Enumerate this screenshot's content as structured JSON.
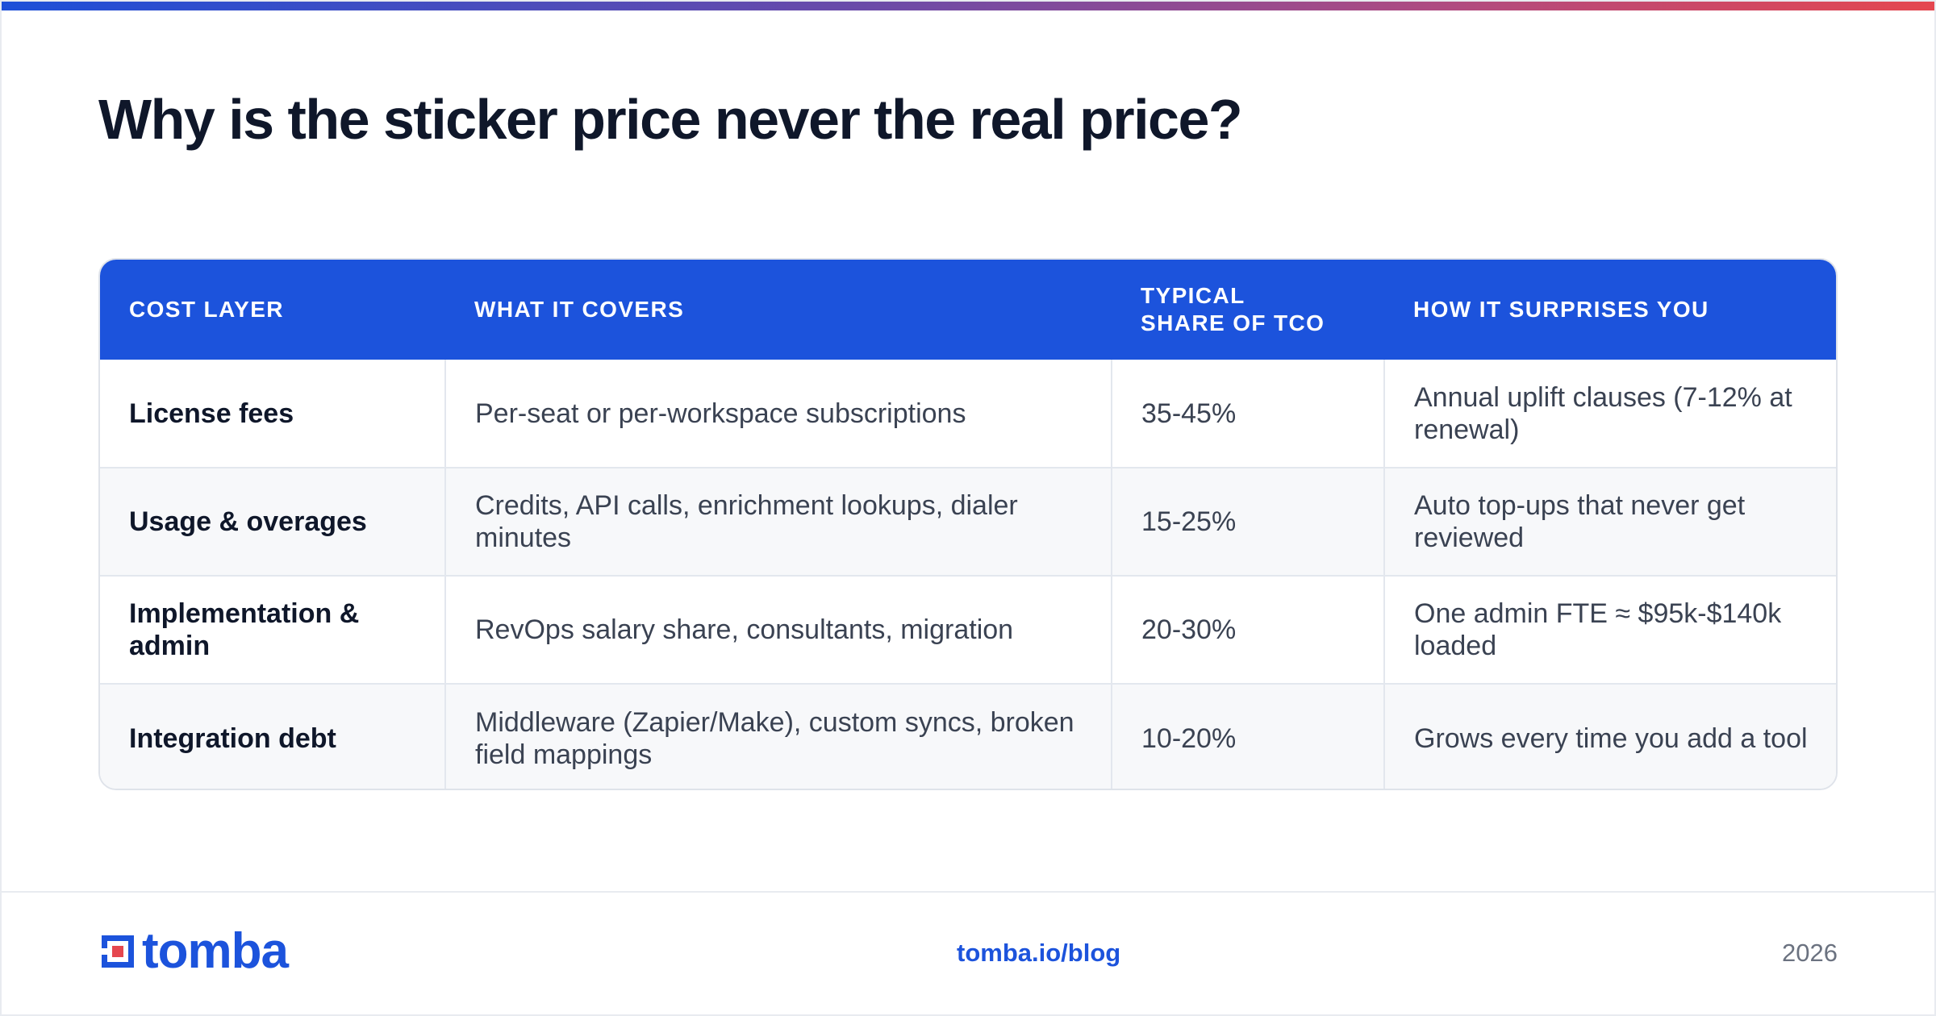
{
  "title": "Why is the sticker price never the real price?",
  "colors": {
    "accent": "#1c53dc",
    "accent_red": "#e5474f",
    "text_dark": "#0f172a",
    "text_body": "#3a4252",
    "muted": "#6b7280"
  },
  "table": {
    "headers": {
      "cost_layer": "COST LAYER",
      "what_it_covers": "WHAT IT COVERS",
      "typical_share": "TYPICAL SHARE OF TCO",
      "how_it_surprises": "HOW IT SURPRISES YOU"
    },
    "rows": [
      {
        "layer": "License fees",
        "covers": "Per-seat or per-workspace subscriptions",
        "share": "35-45%",
        "surprise": "Annual uplift clauses (7-12% at renewal)"
      },
      {
        "layer": "Usage & overages",
        "covers": "Credits, API calls, enrichment lookups, dialer minutes",
        "share": "15-25%",
        "surprise": "Auto top-ups that never get reviewed"
      },
      {
        "layer": "Implementation & admin",
        "covers": "RevOps salary share, consultants, migration",
        "share": "20-30%",
        "surprise": "One admin FTE ≈ $95k-$140k loaded"
      },
      {
        "layer": "Integration debt",
        "covers": "Middleware (Zapier/Make), custom syncs, broken field mappings",
        "share": "10-20%",
        "surprise": "Grows every time you add a tool"
      }
    ]
  },
  "footer": {
    "logo_text": "tomba",
    "logo_icon": "tomba-logo-icon",
    "link": "tomba.io/blog",
    "year": "2026"
  }
}
